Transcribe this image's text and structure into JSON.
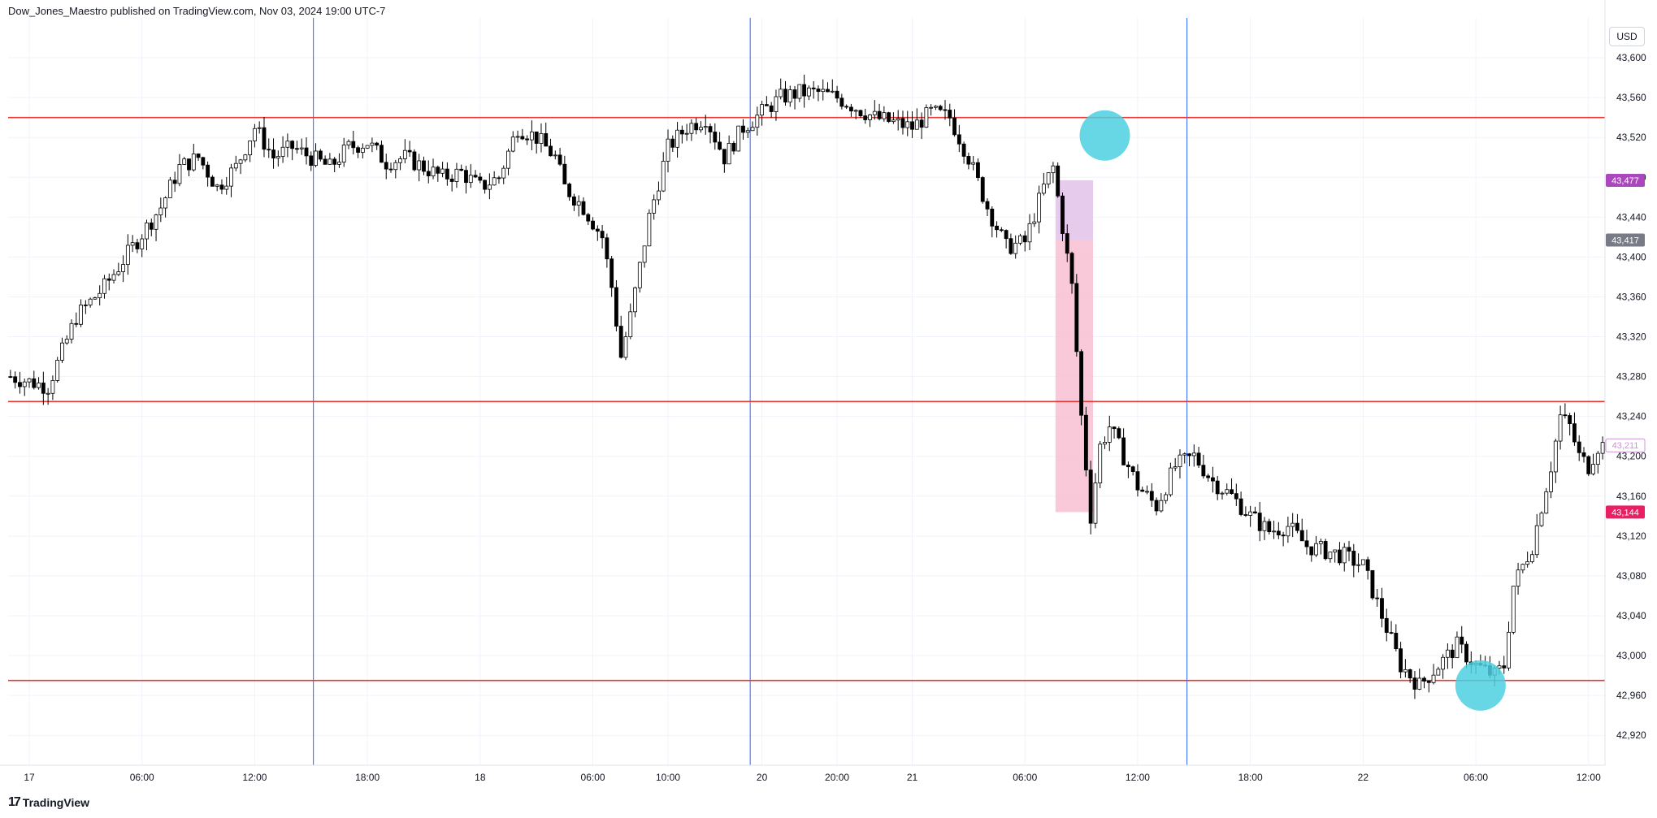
{
  "header": {
    "publisher": "Dow_Jones_Maestro published on TradingView.com, Nov 03, 2024 19:00 UTC-7"
  },
  "currency": "USD",
  "footer": {
    "brand": "TradingView",
    "logo_icon": "tradingview-logo-icon"
  },
  "colors": {
    "level_line": "#e53935",
    "session_line": "#2962ff",
    "circle": "#4dd0e1",
    "zone_purple": "#e1bee7",
    "zone_pink": "#f8bbd0",
    "candle": "#000000"
  },
  "chart_data": {
    "type": "candlestick",
    "y_ticks": [
      42920,
      42960,
      43000,
      43040,
      43080,
      43120,
      43160,
      43200,
      43240,
      43280,
      43320,
      43360,
      43400,
      43440,
      43480,
      43520,
      43560,
      43600
    ],
    "y_tick_labels": [
      "42,920",
      "42,960",
      "43,000",
      "43,040",
      "43,080",
      "43,120",
      "43,160",
      "43,200",
      "43,240",
      "43,280",
      "43,320",
      "43,360",
      "43,400",
      "43,440",
      "43,480",
      "43,520",
      "43,560",
      "43,600"
    ],
    "ylim": [
      42890,
      43640
    ],
    "x_ticks": [
      {
        "label": "17",
        "bar": 4
      },
      {
        "label": "06:00",
        "bar": 28
      },
      {
        "label": "12:00",
        "bar": 52
      },
      {
        "label": "18:00",
        "bar": 76
      },
      {
        "label": "18",
        "bar": 100
      },
      {
        "label": "06:00",
        "bar": 124
      },
      {
        "label": "10:00",
        "bar": 140
      },
      {
        "label": "20",
        "bar": 160
      },
      {
        "label": "20:00",
        "bar": 176
      },
      {
        "label": "21",
        "bar": 192
      },
      {
        "label": "06:00",
        "bar": 216
      },
      {
        "label": "12:00",
        "bar": 240
      },
      {
        "label": "18:00",
        "bar": 264
      },
      {
        "label": "22",
        "bar": 288
      },
      {
        "label": "06:00",
        "bar": 312
      },
      {
        "label": "12:00",
        "bar": 336
      }
    ],
    "total_bars": 340,
    "horizontal_levels": [
      43540,
      43255,
      42975
    ],
    "session_lines_bar": [
      65,
      158,
      251
    ],
    "price_badges": [
      {
        "label": "43,477",
        "value": 43477,
        "color": "#ab47bc",
        "text": "#ffffff"
      },
      {
        "label": "43,417",
        "value": 43417,
        "color": "#787b86",
        "text": "#ffffff"
      },
      {
        "label": "43,211",
        "value": 43211,
        "color": "#ffffff",
        "text": "#ce93d8"
      },
      {
        "label": "43,144",
        "value": 43144,
        "color": "#e91e63",
        "text": "#ffffff"
      }
    ],
    "circles": [
      {
        "bar": 233,
        "value": 43522
      },
      {
        "bar": 313,
        "value": 42970
      }
    ],
    "zones": [
      {
        "bar_start": 223,
        "bar_end": 231,
        "top": 43477,
        "bottom": 43417,
        "color": "#e1bee7"
      },
      {
        "bar_start": 223,
        "bar_end": 231,
        "top": 43417,
        "bottom": 43144,
        "color": "#f8bbd0"
      }
    ],
    "close_path": [
      [
        0,
        43280
      ],
      [
        8,
        43270
      ],
      [
        14,
        43340
      ],
      [
        20,
        43370
      ],
      [
        26,
        43410
      ],
      [
        32,
        43450
      ],
      [
        36,
        43490
      ],
      [
        40,
        43500
      ],
      [
        44,
        43470
      ],
      [
        48,
        43490
      ],
      [
        52,
        43530
      ],
      [
        56,
        43500
      ],
      [
        60,
        43510
      ],
      [
        64,
        43500
      ],
      [
        68,
        43490
      ],
      [
        72,
        43510
      ],
      [
        76,
        43515
      ],
      [
        80,
        43495
      ],
      [
        84,
        43500
      ],
      [
        88,
        43490
      ],
      [
        92,
        43480
      ],
      [
        96,
        43485
      ],
      [
        100,
        43470
      ],
      [
        104,
        43480
      ],
      [
        108,
        43530
      ],
      [
        112,
        43520
      ],
      [
        116,
        43500
      ],
      [
        118,
        43470
      ],
      [
        122,
        43450
      ],
      [
        126,
        43420
      ],
      [
        128,
        43370
      ],
      [
        130,
        43300
      ],
      [
        132,
        43340
      ],
      [
        136,
        43440
      ],
      [
        140,
        43510
      ],
      [
        144,
        43530
      ],
      [
        148,
        43540
      ],
      [
        152,
        43500
      ],
      [
        156,
        43530
      ],
      [
        160,
        43545
      ],
      [
        164,
        43560
      ],
      [
        168,
        43565
      ],
      [
        172,
        43565
      ],
      [
        176,
        43560
      ],
      [
        180,
        43550
      ],
      [
        184,
        43540
      ],
      [
        188,
        43535
      ],
      [
        192,
        43530
      ],
      [
        196,
        43545
      ],
      [
        200,
        43540
      ],
      [
        204,
        43500
      ],
      [
        208,
        43450
      ],
      [
        212,
        43410
      ],
      [
        216,
        43415
      ],
      [
        220,
        43470
      ],
      [
        222,
        43490
      ],
      [
        224,
        43430
      ],
      [
        226,
        43370
      ],
      [
        228,
        43240
      ],
      [
        230,
        43140
      ],
      [
        232,
        43210
      ],
      [
        234,
        43230
      ],
      [
        236,
        43210
      ],
      [
        240,
        43170
      ],
      [
        244,
        43150
      ],
      [
        248,
        43190
      ],
      [
        252,
        43200
      ],
      [
        256,
        43175
      ],
      [
        260,
        43160
      ],
      [
        264,
        43140
      ],
      [
        268,
        43125
      ],
      [
        272,
        43130
      ],
      [
        276,
        43110
      ],
      [
        280,
        43105
      ],
      [
        284,
        43100
      ],
      [
        288,
        43090
      ],
      [
        292,
        43040
      ],
      [
        296,
        42990
      ],
      [
        300,
        42970
      ],
      [
        304,
        42990
      ],
      [
        308,
        43010
      ],
      [
        312,
        42990
      ],
      [
        316,
        42980
      ],
      [
        318,
        42990
      ],
      [
        320,
        43070
      ],
      [
        324,
        43110
      ],
      [
        326,
        43150
      ],
      [
        328,
        43190
      ],
      [
        330,
        43240
      ],
      [
        332,
        43230
      ],
      [
        334,
        43200
      ],
      [
        336,
        43190
      ],
      [
        338,
        43210
      ],
      [
        339,
        43211
      ]
    ]
  }
}
